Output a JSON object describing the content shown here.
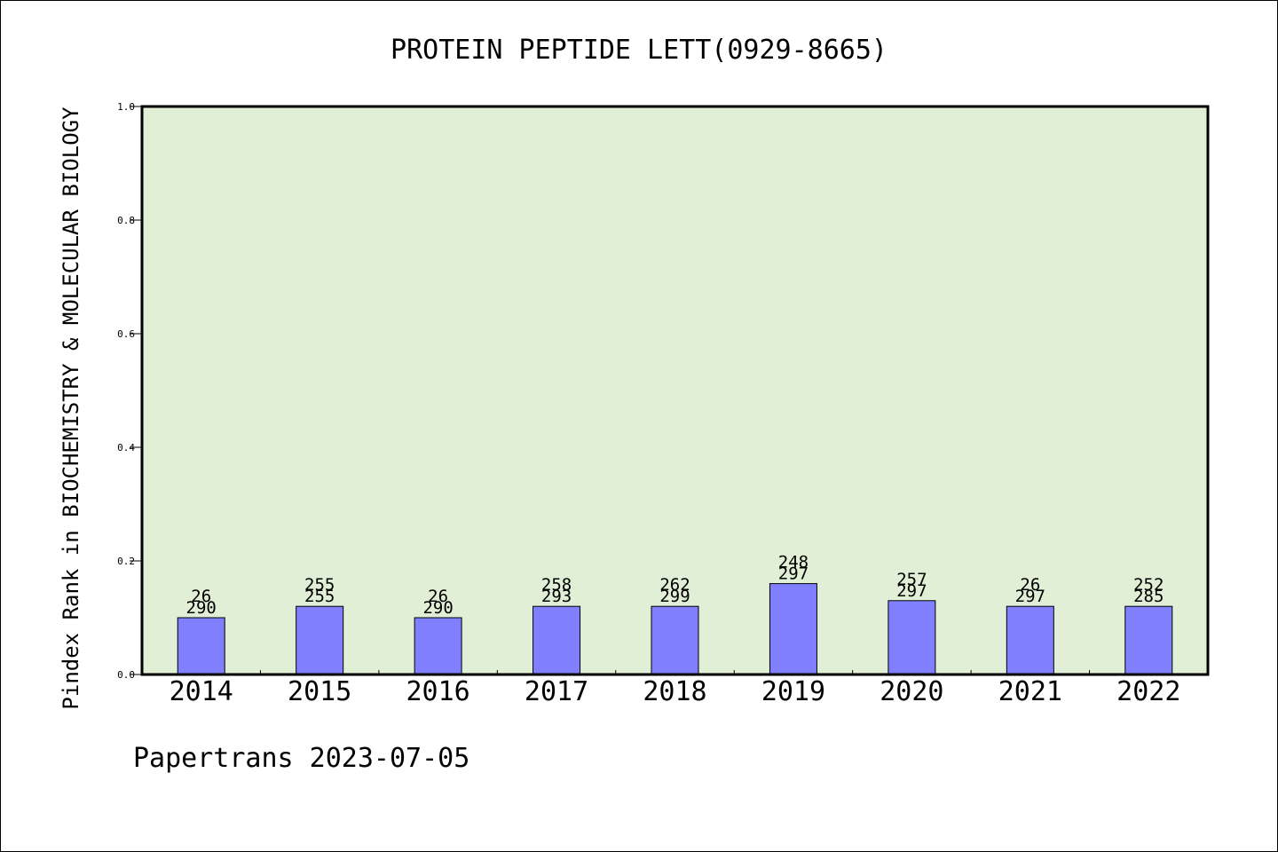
{
  "chart_data": {
    "type": "bar",
    "title": "PROTEIN PEPTIDE LETT(0929-8665)",
    "ylabel": "Pindex Rank in BIOCHEMISTRY & MOLECULAR BIOLOGY",
    "xlabel": "",
    "ylim": [
      0,
      1.0
    ],
    "yticks": [
      "0.0",
      "0.2",
      "0.4",
      "0.6",
      "0.8",
      "1.0"
    ],
    "grid": false,
    "categories": [
      "2014",
      "2015",
      "2016",
      "2017",
      "2018",
      "2019",
      "2020",
      "2021",
      "2022"
    ],
    "values": [
      0.1,
      0.12,
      0.1,
      0.12,
      0.12,
      0.16,
      0.13,
      0.12,
      0.12
    ],
    "rank_labels": [
      "26",
      "255",
      "26",
      "258",
      "262",
      "248",
      "257",
      "26",
      "252"
    ],
    "total_labels": [
      "290",
      "255",
      "290",
      "293",
      "299",
      "297",
      "297",
      "297",
      "285"
    ],
    "colors": {
      "bar": "#8080ff",
      "plot_background": "#e1efd6",
      "axis": "#000000"
    }
  },
  "footer": {
    "credit": "Papertrans 2023-07-05"
  }
}
